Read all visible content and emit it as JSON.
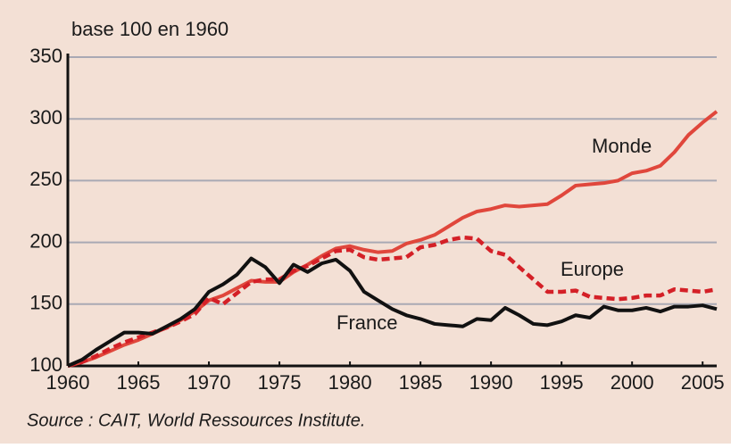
{
  "chart_data": {
    "type": "line",
    "y_label": "base 100 en 1960",
    "source": "Source :  CAIT, World Ressources Institute.",
    "x": [
      1960,
      1961,
      1962,
      1963,
      1964,
      1965,
      1966,
      1967,
      1968,
      1969,
      1970,
      1971,
      1972,
      1973,
      1974,
      1975,
      1976,
      1977,
      1978,
      1979,
      1980,
      1981,
      1982,
      1983,
      1984,
      1985,
      1986,
      1987,
      1988,
      1989,
      1990,
      1991,
      1992,
      1993,
      1994,
      1995,
      1996,
      1997,
      1998,
      1999,
      2000,
      2001,
      2002,
      2003,
      2004,
      2005,
      2006
    ],
    "series": [
      {
        "name": "Monde",
        "color": "#e0473c",
        "dash": false,
        "values": [
          100,
          103,
          107,
          112,
          117,
          121,
          126,
          131,
          137,
          144,
          153,
          157,
          163,
          169,
          168,
          168,
          176,
          182,
          189,
          195,
          197,
          194,
          192,
          193,
          199,
          202,
          206,
          213,
          220,
          225,
          227,
          230,
          229,
          230,
          231,
          238,
          246,
          247,
          248,
          250,
          256,
          258,
          262,
          273,
          287,
          297,
          306
        ]
      },
      {
        "name": "Europe",
        "color": "#d42027",
        "dash": true,
        "values": [
          100,
          103,
          108,
          114,
          119,
          123,
          127,
          131,
          136,
          142,
          155,
          150,
          159,
          168,
          170,
          170,
          177,
          181,
          187,
          193,
          194,
          188,
          186,
          187,
          188,
          196,
          198,
          202,
          204,
          203,
          193,
          190,
          180,
          170,
          160,
          160,
          161,
          156,
          155,
          154,
          155,
          157,
          157,
          162,
          161,
          160,
          162
        ]
      },
      {
        "name": "France",
        "color": "#111111",
        "dash": false,
        "values": [
          100,
          105,
          113,
          120,
          127,
          127,
          126,
          132,
          138,
          146,
          160,
          166,
          174,
          187,
          180,
          167,
          182,
          176,
          183,
          186,
          177,
          160,
          153,
          146,
          141,
          138,
          134,
          133,
          132,
          138,
          137,
          147,
          141,
          134,
          133,
          136,
          141,
          139,
          148,
          145,
          145,
          147,
          144,
          148,
          148,
          149,
          146
        ]
      }
    ],
    "xlim": [
      1960,
      2006
    ],
    "ylim": [
      100,
      350
    ],
    "xticks": [
      1960,
      1965,
      1970,
      1975,
      1980,
      1985,
      1990,
      1995,
      2000,
      2005
    ],
    "yticks": [
      100,
      150,
      200,
      250,
      300,
      350
    ],
    "grid": true
  }
}
